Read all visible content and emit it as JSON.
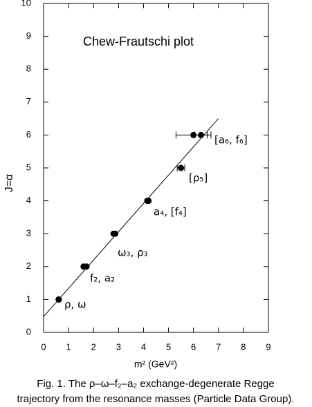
{
  "chart_data": {
    "type": "scatter",
    "title": "Chew-Frautschi plot",
    "x_label": "m² (GeV²)",
    "y_label": "J=α",
    "caption": [
      "Fig. 1. The ρ–ω–f₂–a₂ exchange-degenerate Regge",
      "trajectory from the resonance masses (Particle Data Group)."
    ],
    "xlim": [
      0,
      9
    ],
    "xticks": [
      0,
      1,
      2,
      3,
      4,
      5,
      6,
      7,
      8,
      9
    ],
    "ylim": [
      0,
      10
    ],
    "yticks": [
      0,
      1,
      2,
      3,
      4,
      5,
      6,
      7,
      8,
      9,
      10
    ],
    "color": "#000000",
    "series": [
      {
        "x": [
          0.6,
          0.61,
          1.6,
          1.72,
          2.8,
          2.87,
          4.15,
          4.2,
          5.5,
          6.0,
          6.3
        ],
        "values": [
          1,
          1,
          2,
          2,
          3,
          3,
          4,
          4,
          5,
          6,
          6
        ],
        "xerr": [
          null,
          null,
          null,
          null,
          null,
          null,
          null,
          null,
          0.15,
          0.7,
          0.25
        ]
      }
    ],
    "fit_line": {
      "x": [
        0,
        7
      ],
      "values": [
        0.48,
        6.5
      ]
    },
    "annotations": [
      "ρ, ω",
      "f₂, a₂",
      "ω₃, ρ₃",
      "a₄, [f₄]",
      "[ρ₅]",
      "[a₆, f₆]"
    ]
  }
}
